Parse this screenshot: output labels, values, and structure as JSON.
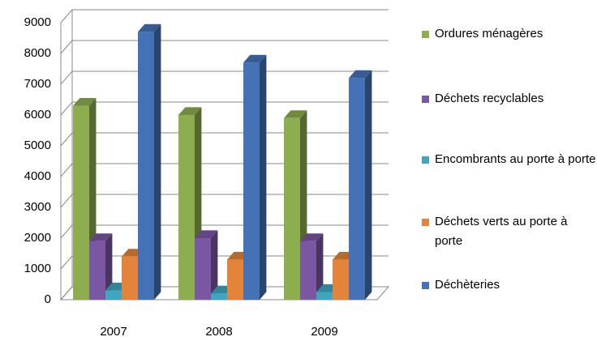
{
  "chart_data": {
    "type": "bar3d",
    "categories": [
      "2007",
      "2008",
      "2009"
    ],
    "series": [
      {
        "name": "Ordures ménagères",
        "color": "#8cae4f",
        "values": [
          6300,
          6000,
          5900
        ]
      },
      {
        "name": "Déchets recyclables",
        "color": "#7b56a2",
        "values": [
          1900,
          2000,
          1900
        ]
      },
      {
        "name": "Encombrants au porte à porte",
        "color": "#3fa6c2",
        "values": [
          300,
          200,
          250
        ]
      },
      {
        "name": "Déchets verts au porte à porte",
        "color": "#e4843a",
        "values": [
          1400,
          1300,
          1300
        ]
      },
      {
        "name": "Déchèteries",
        "color": "#4572b6",
        "values": [
          8700,
          7700,
          7200
        ]
      }
    ],
    "ylim": [
      0,
      9000
    ],
    "yticks": [
      0,
      1000,
      2000,
      3000,
      4000,
      5000,
      6000,
      7000,
      8000,
      9000
    ],
    "grid": true,
    "legend": "right"
  }
}
